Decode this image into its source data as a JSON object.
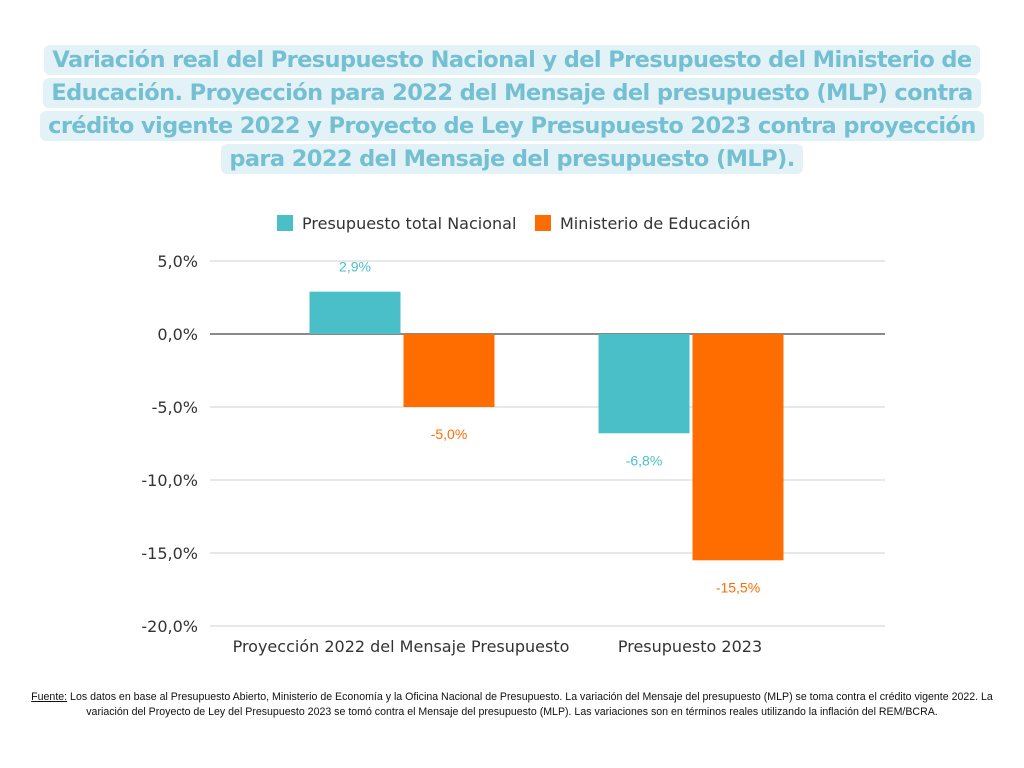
{
  "title": "Variación real del Presupuesto Nacional y del Presupuesto del Ministerio de Educación. Proyección para 2022 del Mensaje del presupuesto (MLP) contra crédito vigente 2022 y Proyecto de Ley Presupuesto 2023 contra proyección para 2022 del Mensaje del presupuesto (MLP).",
  "footnote": {
    "label": "Fuente:",
    "text": " Los datos en base al Presupuesto Abierto, Ministerio de Economía y la Oficina Nacional de Presupuesto. La variación del Mensaje del presupuesto (MLP) se toma contra el crédito vigente 2022. La variación del Proyecto de Ley del Presupuesto 2023 se tomó contra el Mensaje del presupuesto (MLP). Las variaciones son en términos reales utilizando la inflación del REM/BCRA."
  },
  "chart_data": {
    "type": "bar",
    "categories": [
      "Proyección 2022 del Mensaje Presupuesto",
      "Presupuesto 2023"
    ],
    "series": [
      {
        "name": "Presupuesto total Nacional",
        "values": [
          2.9,
          -6.8
        ],
        "labels": [
          "2,9%",
          "-6,8%"
        ],
        "color": "#4bbfc8"
      },
      {
        "name": "Ministerio de Educación",
        "values": [
          -5.0,
          -15.5
        ],
        "labels": [
          "-5,0%",
          "-15,5%"
        ],
        "color": "#ff6d00"
      }
    ],
    "ylim": [
      -20,
      5
    ],
    "yticks": [
      5,
      0,
      -5,
      -10,
      -15,
      -20
    ],
    "ytick_labels": [
      "5,0%",
      "0,0%",
      "-5,0%",
      "-10,0%",
      "-15,0%",
      "-20,0%"
    ],
    "legend": "top",
    "grid": true
  }
}
